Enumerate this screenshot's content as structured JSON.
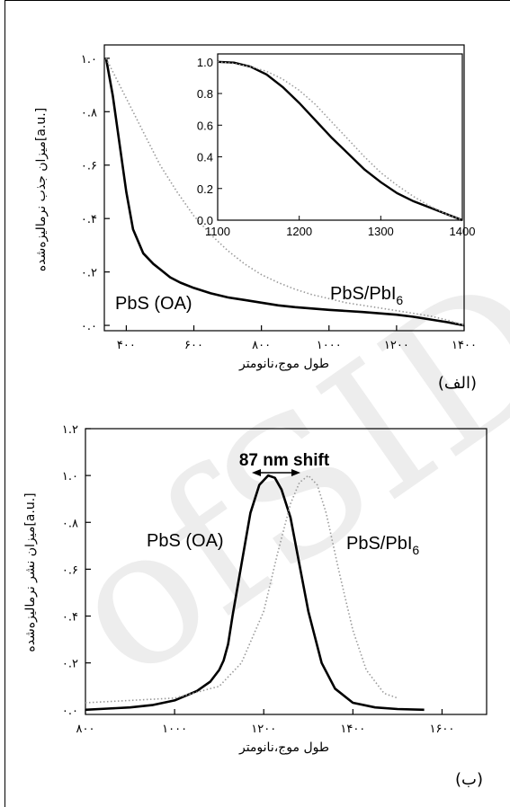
{
  "chart_data": [
    {
      "type": "line",
      "panel_label": "(الف)",
      "xlabel": "طول موج،نانومتر",
      "ylabel": "میزان جذب نرمالیزه‌شده[a.u.]",
      "x_ticks": [
        {
          "v": 400,
          "t": "۴۰۰"
        },
        {
          "v": 600,
          "t": "۶۰۰"
        },
        {
          "v": 800,
          "t": "۸۰۰"
        },
        {
          "v": 1000,
          "t": "۱۰۰۰"
        },
        {
          "v": 1200,
          "t": "۱۲۰۰"
        },
        {
          "v": 1400,
          "t": "۱۴۰۰"
        }
      ],
      "y_ticks": [
        {
          "v": 0,
          "t": "۰.۰"
        },
        {
          "v": 0.2,
          "t": "۰.۲"
        },
        {
          "v": 0.4,
          "t": "۰.۴"
        },
        {
          "v": 0.6,
          "t": "۰.۶"
        },
        {
          "v": 0.8,
          "t": "۰.۸"
        },
        {
          "v": 1.0,
          "t": "۱.۰"
        }
      ],
      "xlim": [
        335,
        1400
      ],
      "ylim": [
        -0.02,
        1.05
      ],
      "series": [
        {
          "name": "PbS (OA)",
          "style": "solid",
          "color": "#000000",
          "x": [
            340,
            360,
            380,
            400,
            420,
            450,
            480,
            500,
            530,
            560,
            600,
            650,
            700,
            750,
            800,
            850,
            900,
            950,
            1000,
            1050,
            1100,
            1150,
            1200,
            1250,
            1300,
            1350,
            1400
          ],
          "y": [
            1.0,
            0.86,
            0.68,
            0.5,
            0.36,
            0.27,
            0.23,
            0.21,
            0.18,
            0.16,
            0.14,
            0.12,
            0.105,
            0.095,
            0.085,
            0.075,
            0.068,
            0.063,
            0.058,
            0.054,
            0.05,
            0.045,
            0.04,
            0.032,
            0.022,
            0.012,
            0.0
          ]
        },
        {
          "name": "PbS/PbI6",
          "style": "dotted",
          "color": "#9a9a9a",
          "x": [
            340,
            380,
            420,
            460,
            500,
            550,
            600,
            650,
            700,
            750,
            800,
            850,
            900,
            950,
            1000,
            1050,
            1100,
            1150,
            1200,
            1250,
            1300,
            1350,
            1400
          ],
          "y": [
            1.0,
            0.9,
            0.8,
            0.7,
            0.6,
            0.5,
            0.41,
            0.34,
            0.28,
            0.23,
            0.19,
            0.16,
            0.135,
            0.115,
            0.1,
            0.085,
            0.075,
            0.065,
            0.055,
            0.045,
            0.035,
            0.02,
            0.0
          ]
        }
      ],
      "inset": {
        "x_ticks": [
          1100,
          1200,
          1300,
          1400
        ],
        "y_ticks": [
          "0.0",
          "0.2",
          "0.4",
          "0.6",
          "0.8",
          "1.0"
        ],
        "xlim": [
          1100,
          1400
        ],
        "ylim": [
          0,
          1.05
        ],
        "series": [
          {
            "name": "PbS (OA)",
            "style": "solid",
            "x": [
              1100,
              1120,
              1140,
              1160,
              1180,
              1200,
              1220,
              1240,
              1260,
              1280,
              1300,
              1320,
              1340,
              1360,
              1380,
              1400
            ],
            "y": [
              1.0,
              0.995,
              0.97,
              0.92,
              0.84,
              0.74,
              0.63,
              0.52,
              0.42,
              0.32,
              0.24,
              0.17,
              0.12,
              0.08,
              0.04,
              0.0
            ]
          },
          {
            "name": "PbS/PbI6",
            "style": "dotted",
            "x": [
              1100,
              1120,
              1140,
              1160,
              1180,
              1200,
              1220,
              1240,
              1260,
              1280,
              1300,
              1320,
              1340,
              1360,
              1380,
              1400
            ],
            "y": [
              1.0,
              0.99,
              0.97,
              0.94,
              0.89,
              0.82,
              0.73,
              0.62,
              0.51,
              0.4,
              0.3,
              0.22,
              0.15,
              0.09,
              0.04,
              0.0
            ]
          }
        ]
      }
    },
    {
      "type": "line",
      "panel_label": "(ب)",
      "xlabel": "طول موج،نانومتر",
      "ylabel": "میزان نشر نرمالیزه‌شده[a.u.]",
      "annotation": "87 nm shift",
      "x_ticks": [
        {
          "v": 800,
          "t": "۸۰۰"
        },
        {
          "v": 1000,
          "t": "۱۰۰۰"
        },
        {
          "v": 1200,
          "t": "۱۲۰۰"
        },
        {
          "v": 1400,
          "t": "۱۴۰۰"
        },
        {
          "v": 1600,
          "t": "۱۶۰۰"
        }
      ],
      "y_ticks": [
        {
          "v": 0,
          "t": "۰.۰"
        },
        {
          "v": 0.2,
          "t": "۰.۲"
        },
        {
          "v": 0.4,
          "t": "۰.۴"
        },
        {
          "v": 0.6,
          "t": "۰.۶"
        },
        {
          "v": 0.8,
          "t": "۰.۸"
        },
        {
          "v": 1.0,
          "t": "۱.۰"
        },
        {
          "v": 1.2,
          "t": "۱.۲"
        }
      ],
      "xlim": [
        800,
        1700
      ],
      "ylim": [
        -0.02,
        1.2
      ],
      "series": [
        {
          "name": "PbS (OA)",
          "style": "solid",
          "color": "#000000",
          "x": [
            800,
            850,
            900,
            950,
            1000,
            1050,
            1080,
            1100,
            1110,
            1120,
            1130,
            1150,
            1170,
            1190,
            1210,
            1225,
            1240,
            1260,
            1280,
            1300,
            1330,
            1360,
            1400,
            1450,
            1500,
            1560
          ],
          "y": [
            0.0,
            0.005,
            0.01,
            0.02,
            0.04,
            0.08,
            0.12,
            0.17,
            0.21,
            0.28,
            0.4,
            0.62,
            0.84,
            0.96,
            1.0,
            0.99,
            0.94,
            0.82,
            0.62,
            0.42,
            0.2,
            0.09,
            0.03,
            0.01,
            0.003,
            0.0
          ]
        },
        {
          "name": "PbS/PbI6",
          "style": "dotted",
          "color": "#9a9a9a",
          "x": [
            800,
            900,
            1000,
            1100,
            1150,
            1200,
            1230,
            1260,
            1280,
            1300,
            1320,
            1340,
            1370,
            1400,
            1430,
            1470,
            1500
          ],
          "y": [
            0.03,
            0.04,
            0.05,
            0.1,
            0.2,
            0.42,
            0.66,
            0.88,
            0.97,
            1.0,
            0.96,
            0.84,
            0.58,
            0.34,
            0.17,
            0.07,
            0.05
          ]
        }
      ]
    }
  ]
}
